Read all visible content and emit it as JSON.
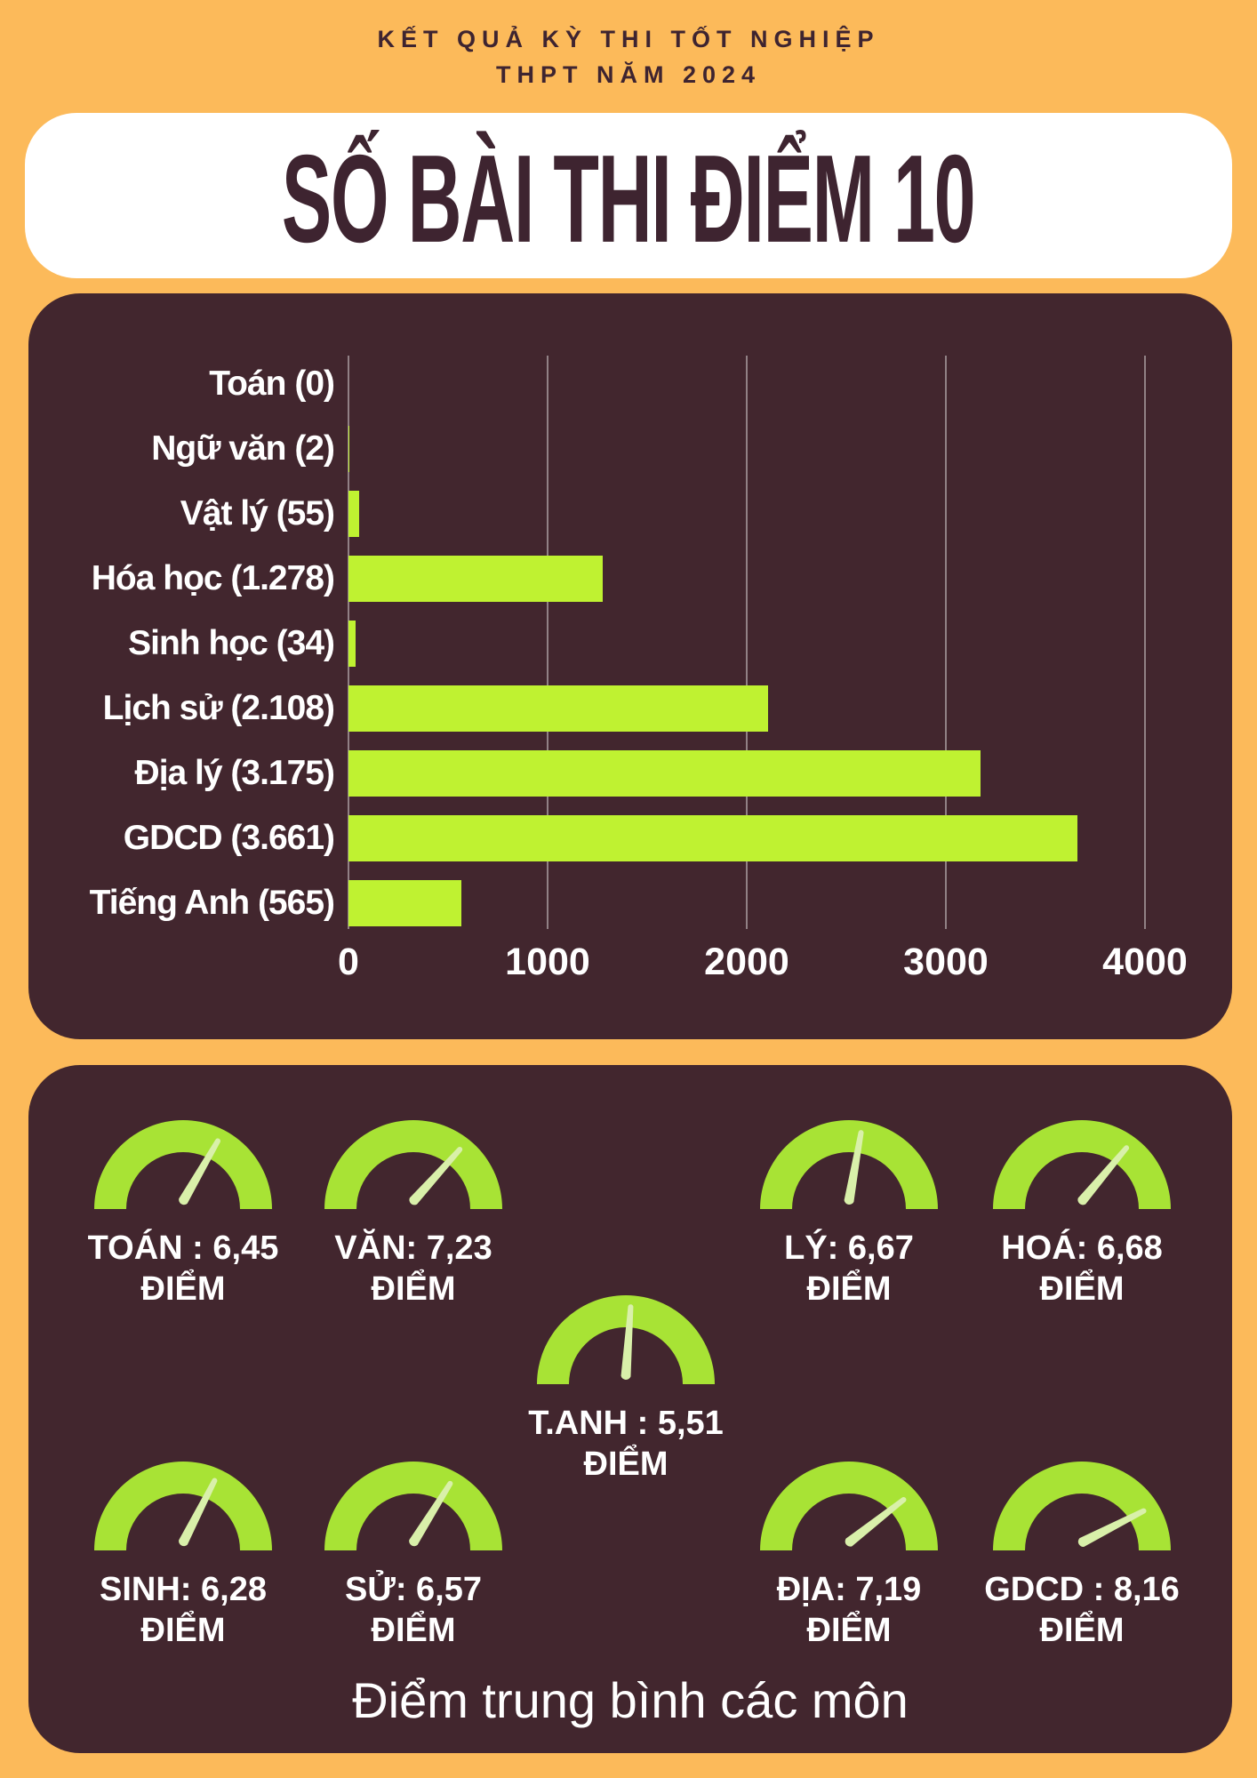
{
  "header": {
    "line1": "KẾT QUẢ KỲ THI TỐT NGHIỆP",
    "line2": "THPT NĂM 2024"
  },
  "title": "SỐ BÀI THI ĐIỂM 10",
  "chart_data": {
    "type": "bar",
    "orientation": "horizontal",
    "title": "SỐ BÀI THI ĐIỂM 10",
    "categories": [
      "Toán",
      "Ngữ văn",
      "Vật lý",
      "Hóa học",
      "Sinh học",
      "Lịch sử",
      "Địa lý",
      "GDCD",
      "Tiếng Anh"
    ],
    "labels": [
      "Toán (0)",
      "Ngữ văn (2)",
      "Vật lý (55)",
      "Hóa học (1.278)",
      "Sinh học (34)",
      "Lịch sử (2.108)",
      "Địa lý (3.175)",
      "GDCD (3.661)",
      "Tiếng Anh (565)"
    ],
    "values": [
      0,
      2,
      55,
      1278,
      34,
      2108,
      3175,
      3661,
      565
    ],
    "x_ticks": [
      "0",
      "1000",
      "2000",
      "3000",
      "4000"
    ],
    "xlim": [
      0,
      4000
    ],
    "grid": true,
    "legend": false
  },
  "gauges": {
    "caption": "Điểm trung bình các môn",
    "items": [
      {
        "label": "TOÁN : 6,45",
        "sublabel": "ĐIỂM",
        "value": 6.45,
        "needle_deg": 30
      },
      {
        "label": "VĂN: 7,23",
        "sublabel": "ĐIỂM",
        "value": 7.23,
        "needle_deg": 42
      },
      {
        "label": "LÝ: 6,67",
        "sublabel": "ĐIỂM",
        "value": 6.67,
        "needle_deg": 10
      },
      {
        "label": "HOÁ: 6,68",
        "sublabel": "ĐIỂM",
        "value": 6.68,
        "needle_deg": 40
      },
      {
        "label": "T.ANH : 5,51",
        "sublabel": "ĐIỂM",
        "value": 5.51,
        "needle_deg": 4
      },
      {
        "label": "SINH: 6,28",
        "sublabel": "ĐIỂM",
        "value": 6.28,
        "needle_deg": 27
      },
      {
        "label": "SỬ: 6,57",
        "sublabel": "ĐIỂM",
        "value": 6.57,
        "needle_deg": 32
      },
      {
        "label": "ĐỊA: 7,19",
        "sublabel": "ĐIỂM",
        "value": 7.19,
        "needle_deg": 52
      },
      {
        "label": "GDCD : 8,16",
        "sublabel": "ĐIỂM",
        "value": 8.16,
        "needle_deg": 63
      }
    ]
  },
  "colors": {
    "background": "#FCBA5A",
    "panel": "#42262E",
    "bar": "#BFF231",
    "gauge_arc": "#A8E335",
    "gauge_needle": "#D9F0AA",
    "text_light": "#FFFFFF",
    "text_dark": "#3E2430"
  }
}
